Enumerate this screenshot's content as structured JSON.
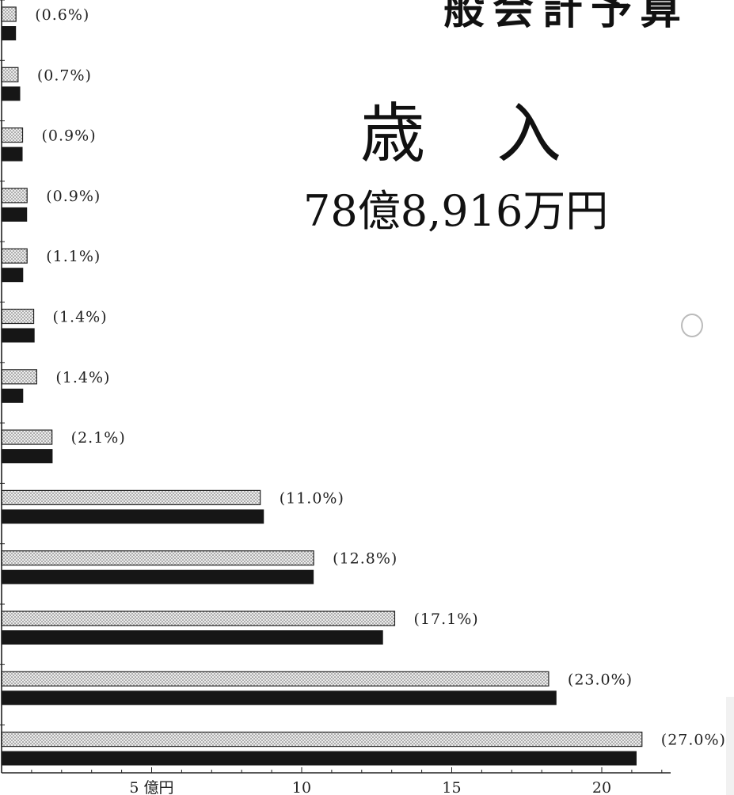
{
  "header": {
    "title_partial": "般会計予算",
    "title_main": "歳入",
    "total": "78億8,916万円"
  },
  "chart_data": {
    "type": "bar",
    "orientation": "horizontal",
    "title": "歳入",
    "xlabel": "",
    "ylabel": "",
    "xlim": [
      0,
      22.3
    ],
    "xticks": [
      {
        "value": 5,
        "label": "5 億円"
      },
      {
        "value": 10,
        "label": "10"
      },
      {
        "value": 15,
        "label": "15"
      },
      {
        "value": 20,
        "label": "20"
      }
    ],
    "grid": false,
    "legend": "none",
    "rows": [
      {
        "share_label": "(0.6%)",
        "dotted": 0.48,
        "solid": 0.48
      },
      {
        "share_label": "(0.7%)",
        "dotted": 0.55,
        "solid": 0.62
      },
      {
        "share_label": "(0.9%)",
        "dotted": 0.7,
        "solid": 0.7
      },
      {
        "share_label": "(0.9%)",
        "dotted": 0.85,
        "solid": 0.85
      },
      {
        "share_label": "(1.1%)",
        "dotted": 0.85,
        "solid": 0.72
      },
      {
        "share_label": "(1.4%)",
        "dotted": 1.07,
        "solid": 1.1
      },
      {
        "share_label": "(1.4%)",
        "dotted": 1.17,
        "solid": 0.72
      },
      {
        "share_label": "(2.1%)",
        "dotted": 1.68,
        "solid": 1.7
      },
      {
        "share_label": "(11.0%)",
        "dotted": 8.62,
        "solid": 8.74
      },
      {
        "share_label": "(12.8%)",
        "dotted": 10.4,
        "solid": 10.4
      },
      {
        "share_label": "(17.1%)",
        "dotted": 13.1,
        "solid": 12.71
      },
      {
        "share_label": "(23.0%)",
        "dotted": 18.23,
        "solid": 18.49
      },
      {
        "share_label": "(27.0%)",
        "dotted": 21.34,
        "solid": 21.16
      }
    ],
    "colors": {
      "dotted_fill": "#ececec",
      "dotted_dot": "#5a5a5a",
      "solid_fill": "#161616",
      "axis": "#222222"
    }
  }
}
